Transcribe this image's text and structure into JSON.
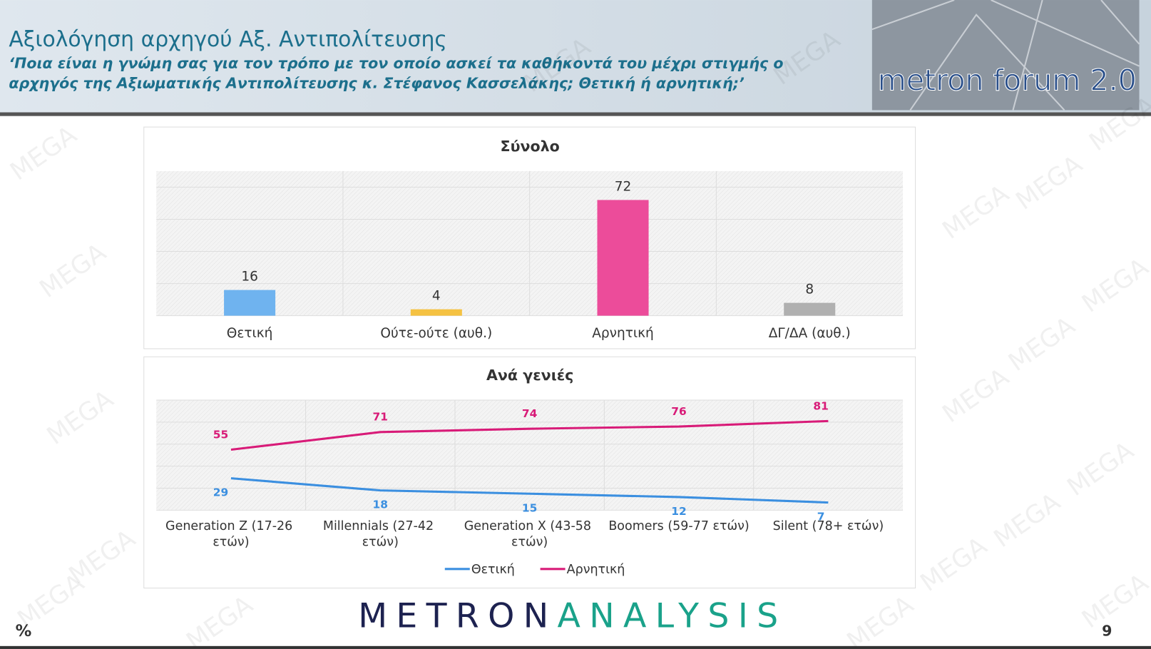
{
  "header": {
    "title": "Αξιολόγηση αρχηγού Αξ. Αντιπολίτευσης",
    "subtitle": [
      "‘Ποια είναι η γνώμη σας για τον τρόπο με τον οποίο ασκεί τα καθήκοντά του μέχρι στιγμής ο",
      "αρχηγός της Αξιωματικής Αντιπολίτευσης κ. Στέφανος Κασσελάκης; Θετική ή αρνητική;’"
    ],
    "logo": "metron forum 2.0"
  },
  "watermark": "MEGA",
  "chart_data": [
    {
      "type": "bar",
      "title": "Σύνολο",
      "categories": [
        "Θετική",
        "Ούτε-ούτε (αυθ.)",
        "Αρνητική",
        "ΔΓ/ΔΑ (αυθ.)"
      ],
      "values": [
        16,
        4,
        72,
        8
      ],
      "colors": [
        "#6fb3ef",
        "#f5c242",
        "#ec4c9a",
        "#b0b0b0"
      ],
      "ylim": [
        0,
        90
      ],
      "yticks": [
        0,
        20,
        40,
        60,
        80
      ],
      "grid": true
    },
    {
      "type": "line",
      "title": "Ανά γενιές",
      "categories": [
        "Generation Z (17-26 ετών)",
        "Millennials (27-42 ετών)",
        "Generation X (43-58 ετών)",
        "Boomers (59-77 ετών)",
        "Silent (78+ ετών)"
      ],
      "series": [
        {
          "name": "Θετική",
          "color": "#3b8fe0",
          "values": [
            29,
            18,
            15,
            12,
            7
          ]
        },
        {
          "name": "Αρνητική",
          "color": "#d81b78",
          "values": [
            55,
            71,
            74,
            76,
            81
          ]
        }
      ],
      "ylim": [
        0,
        100
      ],
      "yticks": [
        0,
        20,
        40,
        60,
        80,
        100
      ],
      "grid": true,
      "legend": "bottom"
    }
  ],
  "footer": {
    "brand": [
      "METRON",
      "ANALYSIS"
    ],
    "unit": "%",
    "page": "9"
  }
}
